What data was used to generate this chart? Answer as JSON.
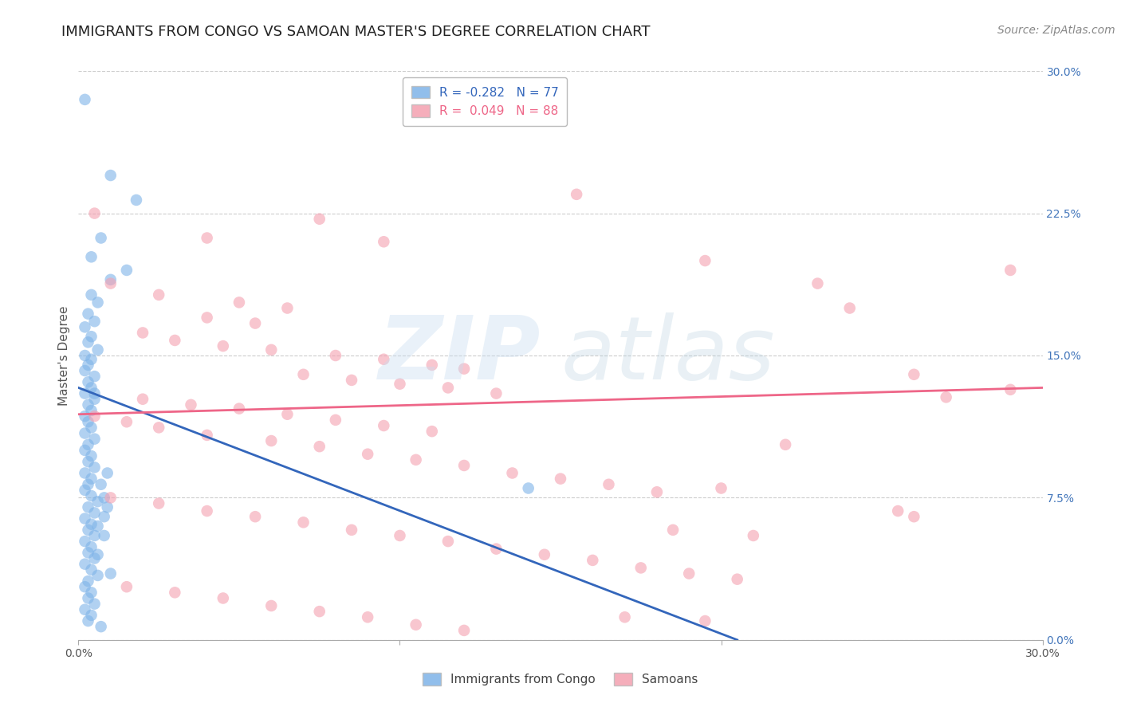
{
  "title": "IMMIGRANTS FROM CONGO VS SAMOAN MASTER'S DEGREE CORRELATION CHART",
  "source": "Source: ZipAtlas.com",
  "ylabel": "Master's Degree",
  "xlim": [
    0.0,
    0.3
  ],
  "ylim": [
    0.0,
    0.3
  ],
  "ytick_labels": [
    "0.0%",
    "7.5%",
    "15.0%",
    "22.5%",
    "30.0%"
  ],
  "ytick_positions": [
    0.0,
    0.075,
    0.15,
    0.225,
    0.3
  ],
  "xtick_positions": [
    0.0,
    0.1,
    0.2,
    0.3
  ],
  "xtick_labels": [
    "0.0%",
    "",
    "",
    "30.0%"
  ],
  "grid_color": "#cccccc",
  "background_color": "#ffffff",
  "blue_color": "#7EB3E8",
  "pink_color": "#F4A0B0",
  "blue_line_color": "#3366BB",
  "pink_line_color": "#EE6688",
  "right_ytick_color": "#4477BB",
  "title_color": "#222222",
  "title_fontsize": 13,
  "ylabel_fontsize": 11,
  "tick_fontsize": 10,
  "source_fontsize": 10,
  "blue_scatter": [
    [
      0.002,
      0.285
    ],
    [
      0.01,
      0.245
    ],
    [
      0.018,
      0.232
    ],
    [
      0.007,
      0.212
    ],
    [
      0.004,
      0.202
    ],
    [
      0.015,
      0.195
    ],
    [
      0.01,
      0.19
    ],
    [
      0.004,
      0.182
    ],
    [
      0.006,
      0.178
    ],
    [
      0.003,
      0.172
    ],
    [
      0.005,
      0.168
    ],
    [
      0.002,
      0.165
    ],
    [
      0.004,
      0.16
    ],
    [
      0.003,
      0.157
    ],
    [
      0.006,
      0.153
    ],
    [
      0.002,
      0.15
    ],
    [
      0.004,
      0.148
    ],
    [
      0.003,
      0.145
    ],
    [
      0.002,
      0.142
    ],
    [
      0.005,
      0.139
    ],
    [
      0.003,
      0.136
    ],
    [
      0.004,
      0.133
    ],
    [
      0.002,
      0.13
    ],
    [
      0.005,
      0.127
    ],
    [
      0.003,
      0.124
    ],
    [
      0.004,
      0.121
    ],
    [
      0.002,
      0.118
    ],
    [
      0.003,
      0.115
    ],
    [
      0.004,
      0.112
    ],
    [
      0.002,
      0.109
    ],
    [
      0.005,
      0.106
    ],
    [
      0.003,
      0.103
    ],
    [
      0.002,
      0.1
    ],
    [
      0.004,
      0.097
    ],
    [
      0.003,
      0.094
    ],
    [
      0.005,
      0.091
    ],
    [
      0.002,
      0.088
    ],
    [
      0.004,
      0.085
    ],
    [
      0.003,
      0.082
    ],
    [
      0.002,
      0.079
    ],
    [
      0.004,
      0.076
    ],
    [
      0.006,
      0.073
    ],
    [
      0.003,
      0.07
    ],
    [
      0.005,
      0.067
    ],
    [
      0.002,
      0.064
    ],
    [
      0.004,
      0.061
    ],
    [
      0.003,
      0.058
    ],
    [
      0.005,
      0.055
    ],
    [
      0.002,
      0.052
    ],
    [
      0.004,
      0.049
    ],
    [
      0.003,
      0.046
    ],
    [
      0.005,
      0.043
    ],
    [
      0.002,
      0.04
    ],
    [
      0.004,
      0.037
    ],
    [
      0.006,
      0.034
    ],
    [
      0.003,
      0.031
    ],
    [
      0.002,
      0.028
    ],
    [
      0.004,
      0.025
    ],
    [
      0.003,
      0.022
    ],
    [
      0.005,
      0.019
    ],
    [
      0.002,
      0.016
    ],
    [
      0.004,
      0.013
    ],
    [
      0.003,
      0.01
    ],
    [
      0.007,
      0.007
    ],
    [
      0.006,
      0.06
    ],
    [
      0.008,
      0.075
    ],
    [
      0.007,
      0.082
    ],
    [
      0.009,
      0.088
    ],
    [
      0.008,
      0.065
    ],
    [
      0.009,
      0.07
    ],
    [
      0.005,
      0.13
    ],
    [
      0.14,
      0.08
    ],
    [
      0.008,
      0.055
    ],
    [
      0.006,
      0.045
    ],
    [
      0.01,
      0.035
    ]
  ],
  "pink_scatter": [
    [
      0.005,
      0.225
    ],
    [
      0.075,
      0.222
    ],
    [
      0.04,
      0.212
    ],
    [
      0.095,
      0.21
    ],
    [
      0.155,
      0.235
    ],
    [
      0.01,
      0.188
    ],
    [
      0.025,
      0.182
    ],
    [
      0.05,
      0.178
    ],
    [
      0.065,
      0.175
    ],
    [
      0.04,
      0.17
    ],
    [
      0.055,
      0.167
    ],
    [
      0.02,
      0.162
    ],
    [
      0.03,
      0.158
    ],
    [
      0.045,
      0.155
    ],
    [
      0.06,
      0.153
    ],
    [
      0.08,
      0.15
    ],
    [
      0.095,
      0.148
    ],
    [
      0.11,
      0.145
    ],
    [
      0.12,
      0.143
    ],
    [
      0.07,
      0.14
    ],
    [
      0.085,
      0.137
    ],
    [
      0.1,
      0.135
    ],
    [
      0.115,
      0.133
    ],
    [
      0.13,
      0.13
    ],
    [
      0.02,
      0.127
    ],
    [
      0.035,
      0.124
    ],
    [
      0.05,
      0.122
    ],
    [
      0.065,
      0.119
    ],
    [
      0.08,
      0.116
    ],
    [
      0.095,
      0.113
    ],
    [
      0.11,
      0.11
    ],
    [
      0.005,
      0.118
    ],
    [
      0.015,
      0.115
    ],
    [
      0.025,
      0.112
    ],
    [
      0.04,
      0.108
    ],
    [
      0.06,
      0.105
    ],
    [
      0.075,
      0.102
    ],
    [
      0.09,
      0.098
    ],
    [
      0.105,
      0.095
    ],
    [
      0.12,
      0.092
    ],
    [
      0.135,
      0.088
    ],
    [
      0.15,
      0.085
    ],
    [
      0.165,
      0.082
    ],
    [
      0.18,
      0.078
    ],
    [
      0.01,
      0.075
    ],
    [
      0.025,
      0.072
    ],
    [
      0.04,
      0.068
    ],
    [
      0.055,
      0.065
    ],
    [
      0.07,
      0.062
    ],
    [
      0.085,
      0.058
    ],
    [
      0.1,
      0.055
    ],
    [
      0.115,
      0.052
    ],
    [
      0.13,
      0.048
    ],
    [
      0.145,
      0.045
    ],
    [
      0.16,
      0.042
    ],
    [
      0.175,
      0.038
    ],
    [
      0.19,
      0.035
    ],
    [
      0.205,
      0.032
    ],
    [
      0.015,
      0.028
    ],
    [
      0.03,
      0.025
    ],
    [
      0.045,
      0.022
    ],
    [
      0.06,
      0.018
    ],
    [
      0.075,
      0.015
    ],
    [
      0.09,
      0.012
    ],
    [
      0.105,
      0.008
    ],
    [
      0.12,
      0.005
    ],
    [
      0.26,
      0.14
    ],
    [
      0.29,
      0.195
    ],
    [
      0.24,
      0.175
    ],
    [
      0.27,
      0.128
    ],
    [
      0.26,
      0.065
    ],
    [
      0.195,
      0.2
    ],
    [
      0.23,
      0.188
    ],
    [
      0.29,
      0.132
    ],
    [
      0.255,
      0.068
    ],
    [
      0.22,
      0.103
    ],
    [
      0.2,
      0.08
    ],
    [
      0.21,
      0.055
    ],
    [
      0.185,
      0.058
    ],
    [
      0.17,
      0.012
    ],
    [
      0.195,
      0.01
    ]
  ],
  "blue_line_x": [
    0.0,
    0.205
  ],
  "blue_line_y": [
    0.133,
    0.0
  ],
  "pink_line_x": [
    0.0,
    0.3
  ],
  "pink_line_y": [
    0.119,
    0.133
  ]
}
